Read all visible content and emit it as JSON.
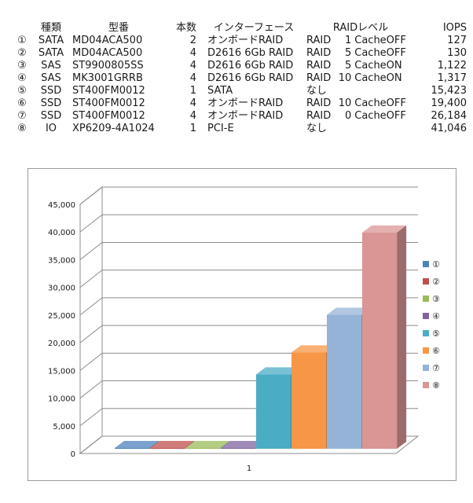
{
  "table": {
    "headers": {
      "no": "",
      "type": "種類",
      "model": "型番",
      "count": "本数",
      "interface": "インターフェース",
      "raid": "RAIDレベル",
      "iops": "IOPS"
    },
    "rows": [
      {
        "no": "①",
        "type": "SATA",
        "model": "MD04ACA500",
        "count": "2",
        "interface": "オンボードRAID",
        "raid_prefix": "RAID",
        "raid_level": "1",
        "raid_cache": "CacheOFF",
        "iops": "127"
      },
      {
        "no": "②",
        "type": "SATA",
        "model": "MD04ACA500",
        "count": "4",
        "interface": "D2616 6Gb RAID",
        "raid_prefix": "RAID",
        "raid_level": "5",
        "raid_cache": "CacheOFF",
        "iops": "130"
      },
      {
        "no": "③",
        "type": "SAS",
        "model": "ST9900805SS",
        "count": "4",
        "interface": "D2616 6Gb RAID",
        "raid_prefix": "RAID",
        "raid_level": "5",
        "raid_cache": "CacheON",
        "iops": "1,122"
      },
      {
        "no": "④",
        "type": "SAS",
        "model": "MK3001GRRB",
        "count": "4",
        "interface": "D2616 6Gb RAID",
        "raid_prefix": "RAID",
        "raid_level": "10",
        "raid_cache": "CacheON",
        "iops": "1,317"
      },
      {
        "no": "⑤",
        "type": "SSD",
        "model": "ST400FM0012",
        "count": "1",
        "interface": "SATA",
        "raid_prefix": "なし",
        "raid_level": "",
        "raid_cache": "",
        "iops": "15,423"
      },
      {
        "no": "⑥",
        "type": "SSD",
        "model": "ST400FM0012",
        "count": "4",
        "interface": "オンボードRAID",
        "raid_prefix": "RAID",
        "raid_level": "10",
        "raid_cache": "CacheOFF",
        "iops": "19,400"
      },
      {
        "no": "⑦",
        "type": "SSD",
        "model": "ST400FM0012",
        "count": "4",
        "interface": "オンボードRAID",
        "raid_prefix": "RAID",
        "raid_level": "0",
        "raid_cache": "CacheOFF",
        "iops": "26,184"
      },
      {
        "no": "⑧",
        "type": "IO",
        "model": "XP6209-4A1024",
        "count": "1",
        "interface": "PCI-E",
        "raid_prefix": "なし",
        "raid_level": "",
        "raid_cache": "",
        "iops": "41,046"
      }
    ]
  },
  "chart_data": {
    "type": "bar",
    "style": "3d-clustered-column",
    "categories": [
      "1"
    ],
    "series": [
      {
        "name": "①",
        "values": [
          127
        ],
        "color": "#4f81bd"
      },
      {
        "name": "②",
        "values": [
          130
        ],
        "color": "#c0504d"
      },
      {
        "name": "③",
        "values": [
          1122
        ],
        "color": "#9bbb59"
      },
      {
        "name": "④",
        "values": [
          1317
        ],
        "color": "#8064a2"
      },
      {
        "name": "⑤",
        "values": [
          15423
        ],
        "color": "#4bacc6"
      },
      {
        "name": "⑥",
        "values": [
          19400
        ],
        "color": "#f79646"
      },
      {
        "name": "⑦",
        "values": [
          26184
        ],
        "color": "#95b3d7"
      },
      {
        "name": "⑧",
        "values": [
          41046
        ],
        "color": "#d99694"
      }
    ],
    "ylim": [
      0,
      45000
    ],
    "yticks": [
      0,
      5000,
      10000,
      15000,
      20000,
      25000,
      30000,
      35000,
      40000,
      45000
    ],
    "ytick_labels": [
      "0",
      "5,000",
      "10,000",
      "15,000",
      "20,000",
      "25,000",
      "30,000",
      "35,000",
      "40,000",
      "45,000"
    ],
    "grid": true,
    "legend": "right"
  }
}
